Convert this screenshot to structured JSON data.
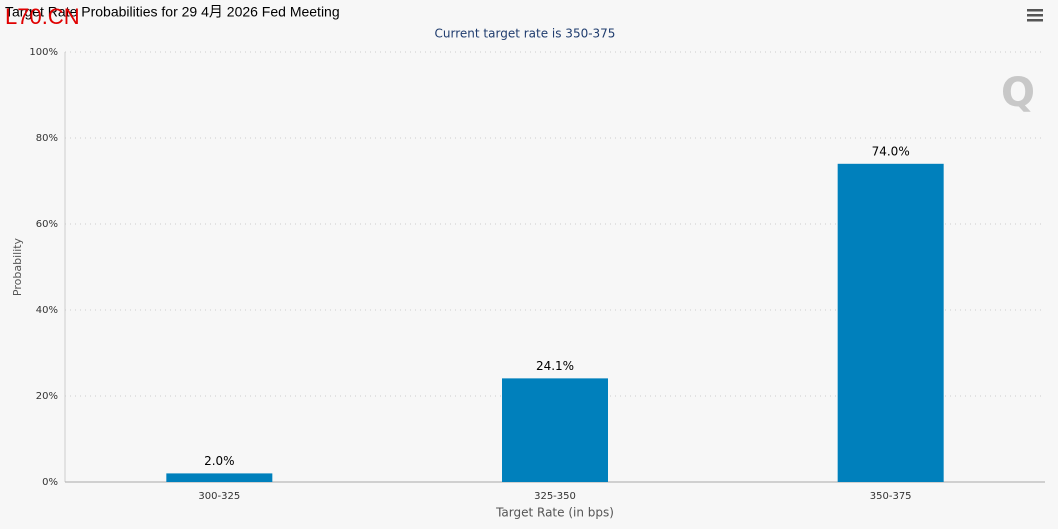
{
  "chart_data": {
    "type": "bar",
    "title": "Target Rate Probabilities for 29 4月 2026 Fed Meeting",
    "subtitle": "Current target rate is 350-375",
    "watermark": "L70.CN",
    "x_label": "Target Rate (in bps)",
    "y_label": "Probability",
    "categories": [
      "300-325",
      "325-350",
      "350-375"
    ],
    "values": [
      2.0,
      24.1,
      74.0
    ],
    "value_labels": [
      "2.0%",
      "24.1%",
      "74.0%"
    ],
    "color": "#0080bc",
    "ylim": [
      0,
      100
    ],
    "yticks": [
      {
        "value": 0,
        "label": "0%"
      },
      {
        "value": 20,
        "label": "20%"
      },
      {
        "value": 40,
        "label": "40%"
      },
      {
        "value": 60,
        "label": "60%"
      },
      {
        "value": 80,
        "label": "80%"
      },
      {
        "value": 100,
        "label": "100%"
      }
    ],
    "grid": true
  }
}
